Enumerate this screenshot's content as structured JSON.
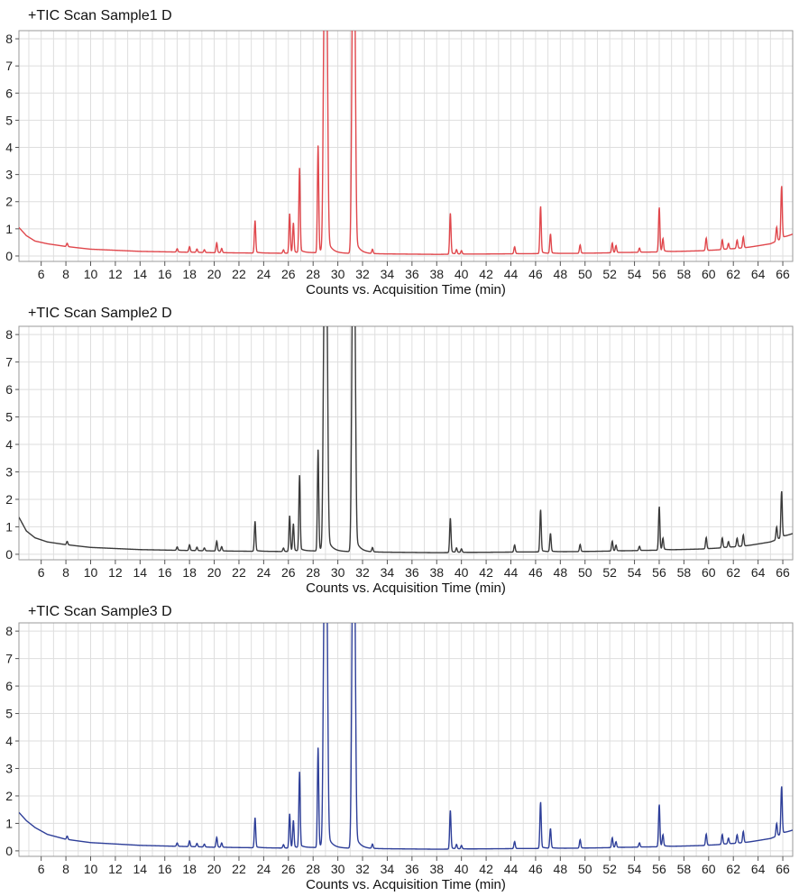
{
  "chart_data": [
    {
      "type": "line",
      "title": "+TIC Scan Sample1 D",
      "xlabel": "Counts vs. Acquisition Time (min)",
      "ylabel": "",
      "xlim": [
        4.2,
        66.8
      ],
      "ylim": [
        -0.2,
        8.3
      ],
      "x_ticks": [
        6,
        8,
        10,
        12,
        14,
        16,
        18,
        20,
        22,
        24,
        26,
        28,
        30,
        32,
        34,
        36,
        38,
        40,
        42,
        44,
        46,
        48,
        50,
        52,
        54,
        56,
        58,
        60,
        62,
        64,
        66
      ],
      "y_ticks": [
        0,
        1,
        2,
        3,
        4,
        5,
        6,
        7,
        8
      ],
      "grid": true,
      "line_color": "#e0474c",
      "series": [
        {
          "baseline": [
            [
              4.2,
              1.05
            ],
            [
              4.8,
              0.75
            ],
            [
              5.5,
              0.55
            ],
            [
              6.5,
              0.45
            ],
            [
              8,
              0.35
            ],
            [
              10,
              0.25
            ],
            [
              14,
              0.17
            ],
            [
              20,
              0.12
            ],
            [
              26,
              0.1
            ],
            [
              28,
              0.12
            ],
            [
              33,
              0.08
            ],
            [
              38,
              0.06
            ],
            [
              44,
              0.08
            ],
            [
              50,
              0.1
            ],
            [
              56,
              0.15
            ],
            [
              60,
              0.2
            ],
            [
              63,
              0.3
            ],
            [
              65,
              0.45
            ],
            [
              66.8,
              0.8
            ]
          ],
          "peaks": [
            [
              8.1,
              0.12
            ],
            [
              17.0,
              0.12
            ],
            [
              18.0,
              0.2
            ],
            [
              18.6,
              0.12
            ],
            [
              19.2,
              0.1
            ],
            [
              20.2,
              0.35
            ],
            [
              20.6,
              0.15
            ],
            [
              23.3,
              1.15
            ],
            [
              25.6,
              0.12
            ],
            [
              26.1,
              1.4
            ],
            [
              26.4,
              1.05
            ],
            [
              26.9,
              3.0
            ],
            [
              28.4,
              3.8
            ],
            [
              28.9,
              9.0
            ],
            [
              29.1,
              9.0
            ],
            [
              31.2,
              9.0
            ],
            [
              31.35,
              9.0
            ],
            [
              32.8,
              0.15
            ],
            [
              39.1,
              1.45
            ],
            [
              39.6,
              0.15
            ],
            [
              40.0,
              0.12
            ],
            [
              44.3,
              0.25
            ],
            [
              46.4,
              1.7
            ],
            [
              47.2,
              0.7
            ],
            [
              49.6,
              0.3
            ],
            [
              52.2,
              0.35
            ],
            [
              52.5,
              0.25
            ],
            [
              54.4,
              0.15
            ],
            [
              56.0,
              1.6
            ],
            [
              56.3,
              0.45
            ],
            [
              59.8,
              0.45
            ],
            [
              61.1,
              0.35
            ],
            [
              61.6,
              0.2
            ],
            [
              62.3,
              0.3
            ],
            [
              62.8,
              0.4
            ],
            [
              65.5,
              0.5
            ],
            [
              65.9,
              1.9
            ]
          ]
        }
      ]
    },
    {
      "type": "line",
      "title": "+TIC Scan Sample2 D",
      "xlabel": "Counts vs. Acquisition Time (min)",
      "ylabel": "",
      "xlim": [
        4.2,
        66.8
      ],
      "ylim": [
        -0.2,
        8.3
      ],
      "x_ticks": [
        6,
        8,
        10,
        12,
        14,
        16,
        18,
        20,
        22,
        24,
        26,
        28,
        30,
        32,
        34,
        36,
        38,
        40,
        42,
        44,
        46,
        48,
        50,
        52,
        54,
        56,
        58,
        60,
        62,
        64,
        66
      ],
      "y_ticks": [
        0,
        1,
        2,
        3,
        4,
        5,
        6,
        7,
        8
      ],
      "grid": true,
      "line_color": "#3a3a3a",
      "series": [
        {
          "baseline": [
            [
              4.2,
              1.35
            ],
            [
              4.8,
              0.85
            ],
            [
              5.5,
              0.6
            ],
            [
              6.5,
              0.45
            ],
            [
              8,
              0.35
            ],
            [
              10,
              0.25
            ],
            [
              14,
              0.17
            ],
            [
              20,
              0.12
            ],
            [
              26,
              0.1
            ],
            [
              28,
              0.12
            ],
            [
              33,
              0.08
            ],
            [
              38,
              0.06
            ],
            [
              44,
              0.08
            ],
            [
              50,
              0.1
            ],
            [
              56,
              0.15
            ],
            [
              60,
              0.2
            ],
            [
              63,
              0.3
            ],
            [
              65,
              0.45
            ],
            [
              66.8,
              0.75
            ]
          ],
          "peaks": [
            [
              8.1,
              0.12
            ],
            [
              17.0,
              0.12
            ],
            [
              18.0,
              0.2
            ],
            [
              18.6,
              0.12
            ],
            [
              19.2,
              0.1
            ],
            [
              20.2,
              0.35
            ],
            [
              20.6,
              0.15
            ],
            [
              23.3,
              1.05
            ],
            [
              25.6,
              0.12
            ],
            [
              26.1,
              1.25
            ],
            [
              26.4,
              0.95
            ],
            [
              26.9,
              2.65
            ],
            [
              28.4,
              3.55
            ],
            [
              28.9,
              9.0
            ],
            [
              29.1,
              9.0
            ],
            [
              31.2,
              9.0
            ],
            [
              31.35,
              9.0
            ],
            [
              32.8,
              0.15
            ],
            [
              39.1,
              1.2
            ],
            [
              39.6,
              0.15
            ],
            [
              40.0,
              0.12
            ],
            [
              44.3,
              0.25
            ],
            [
              46.4,
              1.5
            ],
            [
              47.2,
              0.65
            ],
            [
              49.6,
              0.25
            ],
            [
              52.2,
              0.35
            ],
            [
              52.5,
              0.2
            ],
            [
              54.4,
              0.15
            ],
            [
              56.0,
              1.55
            ],
            [
              56.3,
              0.4
            ],
            [
              59.8,
              0.4
            ],
            [
              61.1,
              0.35
            ],
            [
              61.6,
              0.2
            ],
            [
              62.3,
              0.3
            ],
            [
              62.8,
              0.4
            ],
            [
              65.5,
              0.45
            ],
            [
              65.9,
              1.65
            ]
          ]
        }
      ]
    },
    {
      "type": "line",
      "title": "+TIC Scan Sample3 D",
      "xlabel": "Counts vs. Acquisition Time (min)",
      "ylabel": "",
      "xlim": [
        4.2,
        66.8
      ],
      "ylim": [
        -0.2,
        8.3
      ],
      "x_ticks": [
        6,
        8,
        10,
        12,
        14,
        16,
        18,
        20,
        22,
        24,
        26,
        28,
        30,
        32,
        34,
        36,
        38,
        40,
        42,
        44,
        46,
        48,
        50,
        52,
        54,
        56,
        58,
        60,
        62,
        64,
        66
      ],
      "y_ticks": [
        0,
        1,
        2,
        3,
        4,
        5,
        6,
        7,
        8
      ],
      "grid": true,
      "line_color": "#2e3f99",
      "series": [
        {
          "baseline": [
            [
              4.2,
              1.4
            ],
            [
              4.8,
              1.1
            ],
            [
              5.5,
              0.85
            ],
            [
              6.5,
              0.6
            ],
            [
              8,
              0.42
            ],
            [
              10,
              0.3
            ],
            [
              14,
              0.2
            ],
            [
              20,
              0.13
            ],
            [
              26,
              0.1
            ],
            [
              28,
              0.12
            ],
            [
              33,
              0.08
            ],
            [
              38,
              0.06
            ],
            [
              44,
              0.08
            ],
            [
              50,
              0.1
            ],
            [
              56,
              0.15
            ],
            [
              60,
              0.2
            ],
            [
              63,
              0.3
            ],
            [
              65,
              0.45
            ],
            [
              66.8,
              0.75
            ]
          ],
          "peaks": [
            [
              8.1,
              0.12
            ],
            [
              17.0,
              0.12
            ],
            [
              18.0,
              0.2
            ],
            [
              18.6,
              0.12
            ],
            [
              19.2,
              0.1
            ],
            [
              20.2,
              0.35
            ],
            [
              20.6,
              0.15
            ],
            [
              23.3,
              1.05
            ],
            [
              25.6,
              0.12
            ],
            [
              26.1,
              1.2
            ],
            [
              26.4,
              0.95
            ],
            [
              26.9,
              2.65
            ],
            [
              28.4,
              3.5
            ],
            [
              28.9,
              9.0
            ],
            [
              29.1,
              9.0
            ],
            [
              31.2,
              9.0
            ],
            [
              31.35,
              9.0
            ],
            [
              32.8,
              0.15
            ],
            [
              39.1,
              1.35
            ],
            [
              39.6,
              0.15
            ],
            [
              40.0,
              0.12
            ],
            [
              44.3,
              0.25
            ],
            [
              46.4,
              1.65
            ],
            [
              47.2,
              0.7
            ],
            [
              49.6,
              0.3
            ],
            [
              52.2,
              0.35
            ],
            [
              52.5,
              0.2
            ],
            [
              54.4,
              0.15
            ],
            [
              56.0,
              1.5
            ],
            [
              56.3,
              0.4
            ],
            [
              59.8,
              0.4
            ],
            [
              61.1,
              0.35
            ],
            [
              61.6,
              0.2
            ],
            [
              62.3,
              0.3
            ],
            [
              62.8,
              0.4
            ],
            [
              65.5,
              0.45
            ],
            [
              65.9,
              1.7
            ]
          ]
        }
      ]
    }
  ]
}
